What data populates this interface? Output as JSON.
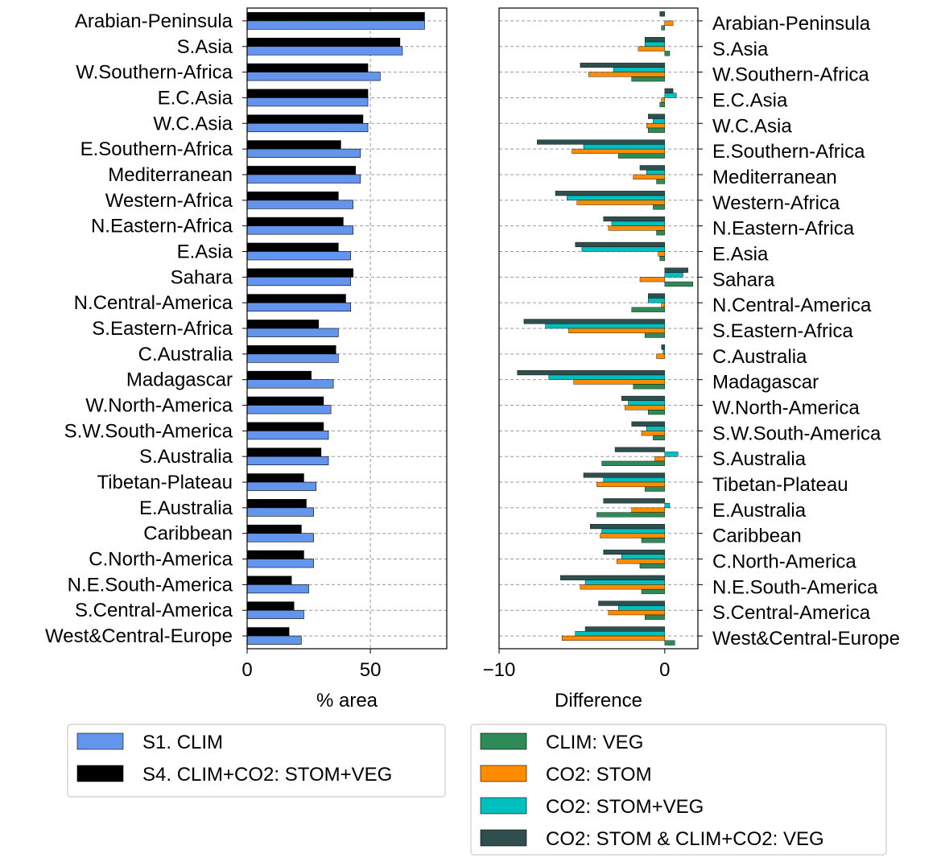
{
  "chart_data": [
    {
      "type": "bar",
      "orientation": "horizontal",
      "categories": [
        "Arabian-Peninsula",
        "S.Asia",
        "W.Southern-Africa",
        "E.C.Asia",
        "W.C.Asia",
        "E.Southern-Africa",
        "Mediterranean",
        "Western-Africa",
        "N.Eastern-Africa",
        "E.Asia",
        "Sahara",
        "N.Central-America",
        "S.Eastern-Africa",
        "C.Australia",
        "Madagascar",
        "W.North-America",
        "S.W.South-America",
        "S.Australia",
        "Tibetan-Plateau",
        "E.Australia",
        "Caribbean",
        "C.North-America",
        "N.E.South-America",
        "S.Central-America",
        "West&Central-Europe"
      ],
      "series": [
        {
          "name": "S1. CLIM",
          "color": "#6495ed",
          "values": [
            72,
            63,
            54,
            49,
            49,
            46,
            46,
            43,
            43,
            42,
            42,
            42,
            37,
            37,
            35,
            34,
            33,
            33,
            28,
            27,
            27,
            27,
            25,
            23,
            22
          ]
        },
        {
          "name": "S4. CLIM+CO2: STOM+VEG",
          "color": "#000000",
          "values": [
            72,
            62,
            49,
            49,
            47,
            38,
            44,
            37,
            39,
            37,
            43,
            40,
            29,
            36,
            26,
            31,
            31,
            30,
            23,
            24,
            22,
            23,
            18,
            19,
            17
          ]
        }
      ],
      "xlabel": "% area",
      "xlim": [
        0,
        81
      ],
      "xticks": [
        0,
        50
      ],
      "grid": "both",
      "legend": "below"
    },
    {
      "type": "bar",
      "orientation": "horizontal",
      "categories": [
        "Arabian-Peninsula",
        "S.Asia",
        "W.Southern-Africa",
        "E.C.Asia",
        "W.C.Asia",
        "E.Southern-Africa",
        "Mediterranean",
        "Western-Africa",
        "N.Eastern-Africa",
        "E.Asia",
        "Sahara",
        "N.Central-America",
        "S.Eastern-Africa",
        "C.Australia",
        "Madagascar",
        "W.North-America",
        "S.W.South-America",
        "S.Australia",
        "Tibetan-Plateau",
        "E.Australia",
        "Caribbean",
        "C.North-America",
        "N.E.South-America",
        "S.Central-America",
        "West&Central-Europe"
      ],
      "series": [
        {
          "name": "CLIM: VEG",
          "color": "#2e8b57",
          "values": [
            -0.2,
            0.3,
            -2.0,
            -0.3,
            -1.0,
            -2.8,
            -0.5,
            -0.7,
            -0.5,
            -0.3,
            1.7,
            -2.0,
            -1.2,
            0.0,
            -1.9,
            -1.0,
            -0.7,
            -3.8,
            -1.2,
            -4.1,
            -1.4,
            -1.5,
            -1.4,
            -1.2,
            0.6
          ]
        },
        {
          "name": "CO2: STOM",
          "color": "#ff8c00",
          "values": [
            0.5,
            -1.6,
            -4.6,
            -0.2,
            -1.1,
            -5.6,
            -1.9,
            -5.3,
            -3.4,
            -0.4,
            -1.5,
            -0.2,
            -5.8,
            -0.5,
            -5.5,
            -2.4,
            -1.4,
            -0.6,
            -4.1,
            -2.0,
            -3.9,
            -2.9,
            -5.1,
            -3.4,
            -6.2
          ]
        },
        {
          "name": "CO2: STOM+VEG",
          "color": "#00bfbf",
          "values": [
            0.0,
            -1.2,
            -3.1,
            0.7,
            -0.7,
            -4.9,
            -1.1,
            -5.9,
            -3.2,
            -5.0,
            1.1,
            -1.0,
            -7.2,
            -0.1,
            -7.0,
            -2.2,
            -1.1,
            0.8,
            -3.7,
            0.3,
            -3.8,
            -2.6,
            -4.8,
            -2.8,
            -5.4
          ]
        },
        {
          "name": "CO2: STOM & CLIM+CO2: VEG",
          "color": "#2f4f4f",
          "values": [
            -0.3,
            -1.2,
            -5.1,
            0.5,
            -1.0,
            -7.7,
            -1.5,
            -6.6,
            -3.7,
            -5.4,
            1.4,
            -1.0,
            -8.5,
            -0.2,
            -8.9,
            -2.6,
            -2.0,
            -3.0,
            -4.9,
            -3.7,
            -4.5,
            -3.7,
            -6.3,
            -4.0,
            -4.8
          ]
        }
      ],
      "xlabel": "Difference",
      "xlim": [
        -10,
        2
      ],
      "xticks": [
        -10,
        0
      ],
      "xticklabels": [
        "−10",
        "0"
      ],
      "grid": "y",
      "legend": "below"
    }
  ]
}
